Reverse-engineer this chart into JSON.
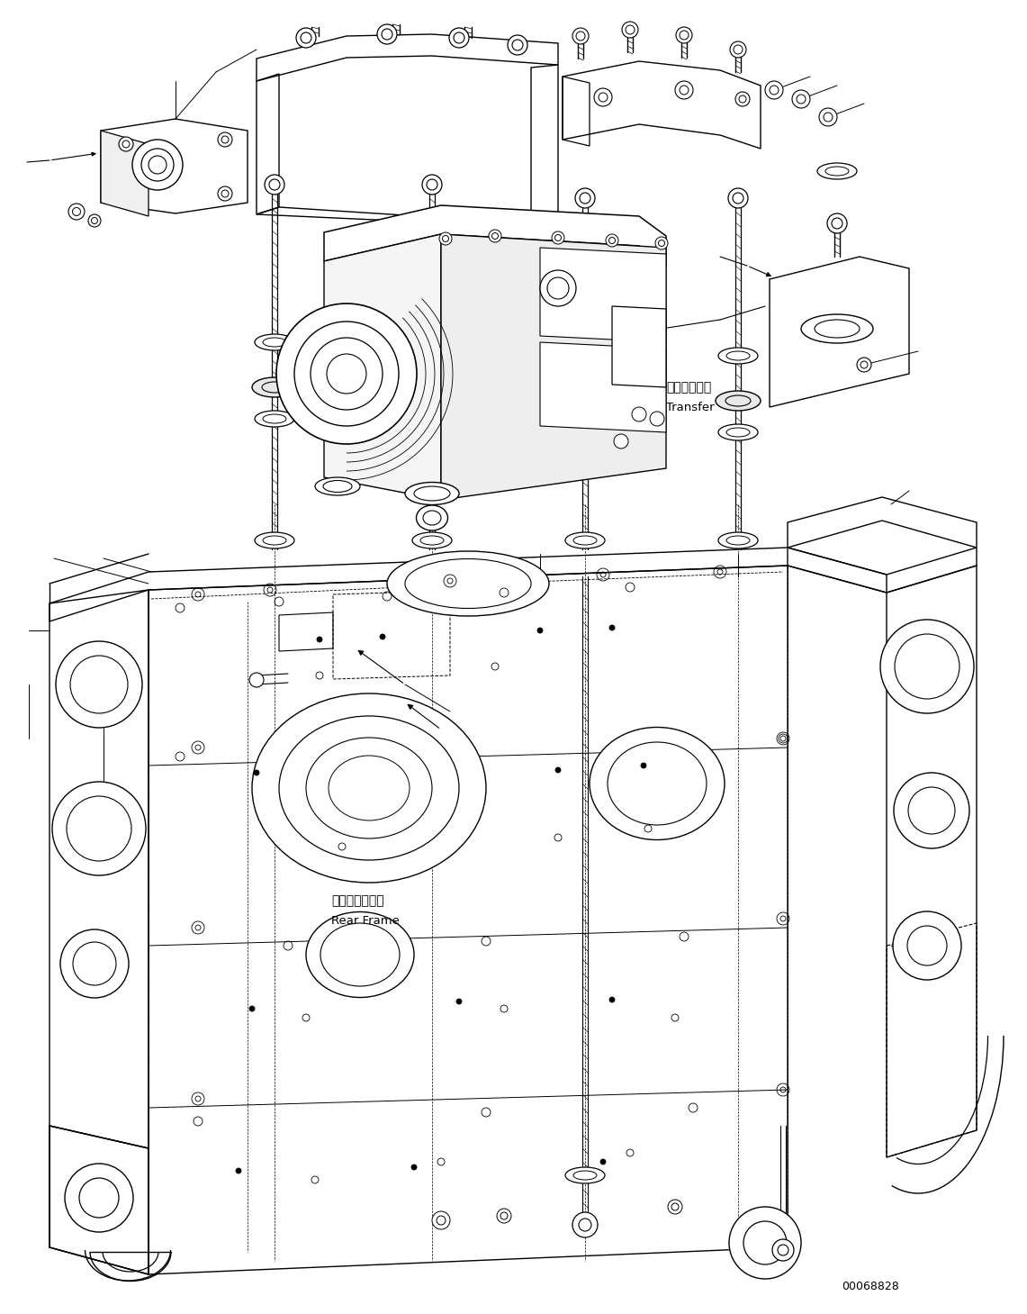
{
  "background_color": "#ffffff",
  "line_color": "#000000",
  "label_transfer_jp": "トランスファ",
  "label_transfer_en": "Transfer",
  "label_rear_frame_jp": "リヤーフレーム",
  "label_rear_frame_en": "Rear Frame",
  "part_number": "00068828",
  "fig_width": 11.41,
  "fig_height": 14.59,
  "dpi": 100
}
